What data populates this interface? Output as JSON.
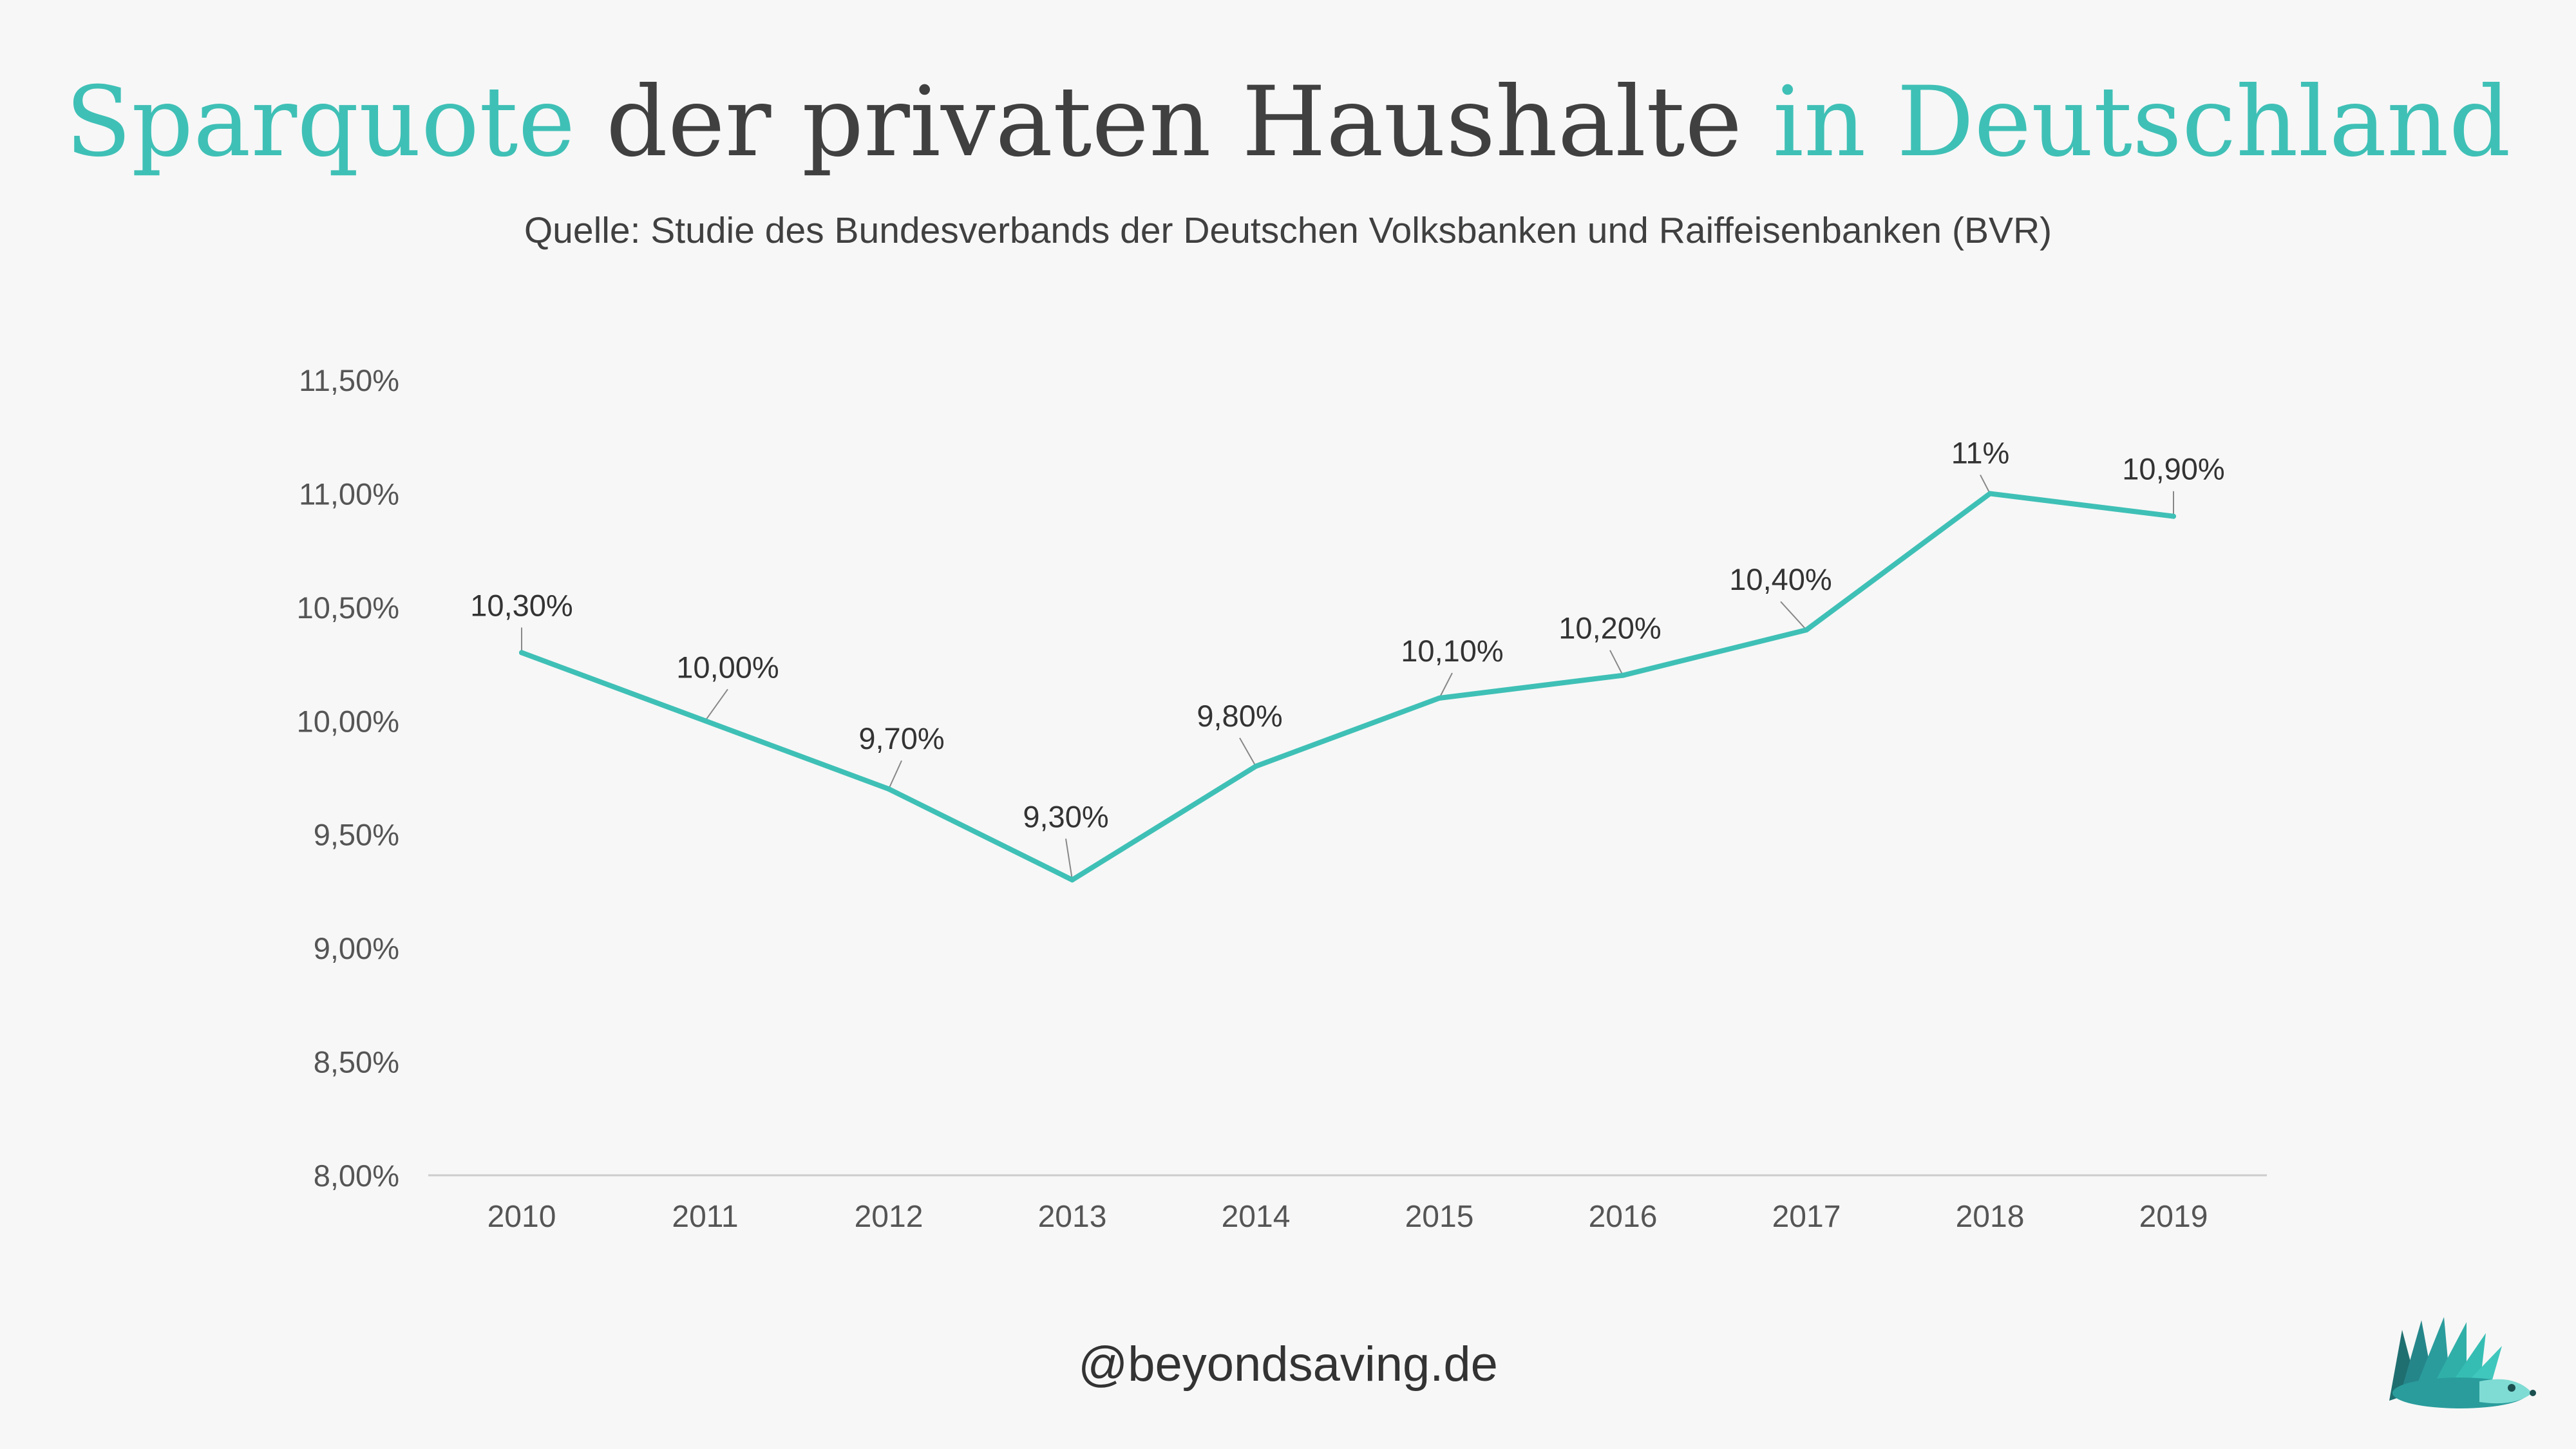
{
  "header": {
    "title_part1": "Sparquote",
    "title_part2": " der privaten Haushalte ",
    "title_part3": "in Deutschland",
    "subtitle": "Quelle: Studie des Bundesverbands der Deutschen Volksbanken und Raiffeisenbanken (BVR)"
  },
  "footer": {
    "handle": "@beyondsaving.de"
  },
  "colors": {
    "accent": "#3fc0b6",
    "text": "#404040",
    "background": "#f7f7f7"
  },
  "logo": {
    "icon": "hedgehog-icon"
  },
  "chart_data": {
    "type": "line",
    "title": "Sparquote der privaten Haushalte in Deutschland",
    "xlabel": "",
    "ylabel": "",
    "ylim": [
      8.0,
      11.5
    ],
    "grid": false,
    "categories": [
      "2010",
      "2011",
      "2012",
      "2013",
      "2014",
      "2015",
      "2016",
      "2017",
      "2018",
      "2019"
    ],
    "values": [
      10.3,
      10.0,
      9.7,
      9.3,
      9.8,
      10.1,
      10.2,
      10.4,
      11.0,
      10.9
    ],
    "data_labels": [
      "10,30%",
      "10,00%",
      "9,70%",
      "9,30%",
      "9,80%",
      "10,10%",
      "10,20%",
      "10,40%",
      "11%",
      "10,90%"
    ],
    "y_ticks": [
      {
        "value": 8.0,
        "label": "8,00%"
      },
      {
        "value": 8.5,
        "label": "8,50%"
      },
      {
        "value": 9.0,
        "label": "9,00%"
      },
      {
        "value": 9.5,
        "label": "9,50%"
      },
      {
        "value": 10.0,
        "label": "10,00%"
      },
      {
        "value": 10.5,
        "label": "10,50%"
      },
      {
        "value": 11.0,
        "label": "11,00%"
      },
      {
        "value": 11.5,
        "label": "11,50%"
      }
    ]
  }
}
